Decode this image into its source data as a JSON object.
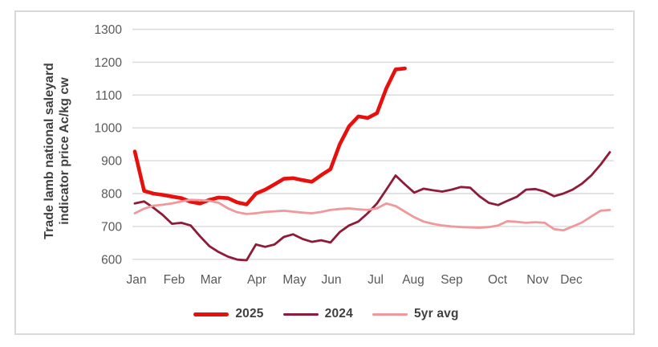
{
  "chart_data": {
    "type": "line",
    "title": "",
    "ylabel_lines": [
      "Trade lamb national saleyard",
      "indicator price Ac/kg cw"
    ],
    "ylabel": "Trade lamb national saleyard indicator price Ac/kg cw",
    "y_ticks": [
      1300,
      1200,
      1100,
      1000,
      900,
      800,
      700,
      600
    ],
    "ylim": [
      600,
      1300
    ],
    "x_tick_labels": [
      "Jan",
      "Feb",
      "Mar",
      "Apr",
      "May",
      "Jun",
      "Jul",
      "Aug",
      "Sep",
      "Oct",
      "Nov",
      "Dec"
    ],
    "x_unit": "weekly",
    "grid": "horizontal",
    "legend_position": "bottom-center",
    "colors": {
      "gridline": "#d9d9d9",
      "tick_text": "#595959",
      "axis_title_text": "#3f3f3f",
      "frame_border": "#d9d9d9"
    },
    "series": [
      {
        "name": "2025",
        "color": "#e8100c",
        "width": 4.6,
        "values": [
          928,
          808,
          800,
          796,
          791,
          786,
          775,
          770,
          781,
          788,
          786,
          773,
          767,
          800,
          812,
          828,
          845,
          847,
          841,
          836,
          856,
          874,
          950,
          1005,
          1035,
          1030,
          1045,
          1120,
          1178,
          1181
        ]
      },
      {
        "name": "2024",
        "color": "#8e1b37",
        "width": 2.8,
        "values": [
          770,
          776,
          757,
          735,
          708,
          711,
          703,
          670,
          640,
          622,
          608,
          599,
          597,
          645,
          638,
          645,
          668,
          676,
          662,
          653,
          658,
          651,
          683,
          703,
          715,
          740,
          770,
          812,
          855,
          828,
          803,
          815,
          810,
          806,
          812,
          820,
          818,
          792,
          772,
          765,
          778,
          790,
          812,
          814,
          806,
          792,
          800,
          812,
          830,
          855,
          888,
          926
        ]
      },
      {
        "name": "5yr avg",
        "color": "#f0989b",
        "width": 2.8,
        "values": [
          740,
          754,
          763,
          766,
          770,
          776,
          781,
          780,
          778,
          772,
          755,
          743,
          738,
          740,
          744,
          746,
          748,
          745,
          742,
          740,
          744,
          750,
          753,
          755,
          752,
          750,
          755,
          770,
          762,
          745,
          728,
          715,
          708,
          703,
          700,
          698,
          697,
          696,
          698,
          703,
          716,
          714,
          711,
          713,
          711,
          692,
          688,
          700,
          712,
          730,
          748,
          750
        ]
      }
    ]
  }
}
